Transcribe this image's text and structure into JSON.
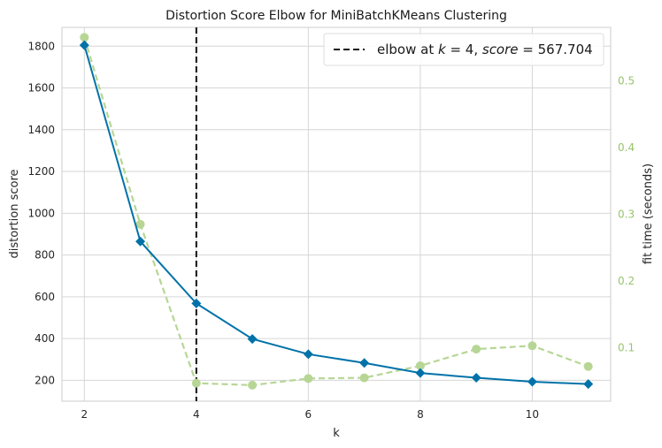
{
  "chart_data": {
    "type": "line",
    "title": "Distortion Score Elbow for MiniBatchKMeans Clustering",
    "xlabel": "k",
    "ylabel": "distortion score",
    "ylabel_right": "fit time (seconds)",
    "xlim": [
      1.6,
      11.4
    ],
    "ylim": [
      100,
      1890
    ],
    "ylim_right": [
      0.02,
      0.58
    ],
    "x_ticks": [
      2,
      4,
      6,
      8,
      10
    ],
    "y_ticks": [
      200,
      400,
      600,
      800,
      1000,
      1200,
      1400,
      1600,
      1800
    ],
    "y_ticks_right": [
      0.1,
      0.2,
      0.3,
      0.4,
      0.5
    ],
    "grid": true,
    "legend_position": "top-right",
    "legend": {
      "label_prefix": "elbow at ",
      "k_symbol": "k",
      "equals": " = ",
      "k_value": "4",
      "separator": ", ",
      "score_symbol": "score",
      "score_value": "567.704"
    },
    "elbow": {
      "x": 4,
      "color": "#111111"
    },
    "series": [
      {
        "axis": "left",
        "color": "#0072a8",
        "marker": "diamond",
        "x": [
          2,
          3,
          4,
          5,
          6,
          7,
          8,
          9,
          10,
          11
        ],
        "values": [
          1805,
          865,
          568,
          398,
          325,
          283,
          235,
          212,
          193,
          182
        ]
      },
      {
        "axis": "right",
        "color": "#b7d695",
        "marker": "circle",
        "dashed": true,
        "x": [
          2,
          3,
          4,
          5,
          6,
          7,
          8,
          9,
          10,
          11
        ],
        "values": [
          0.565,
          0.285,
          0.047,
          0.044,
          0.054,
          0.055,
          0.073,
          0.098,
          0.103,
          0.072
        ]
      }
    ],
    "colors": {
      "axis_right": "#97c46f",
      "grid": "#d6d6d6",
      "frame": "#cccccc"
    }
  }
}
